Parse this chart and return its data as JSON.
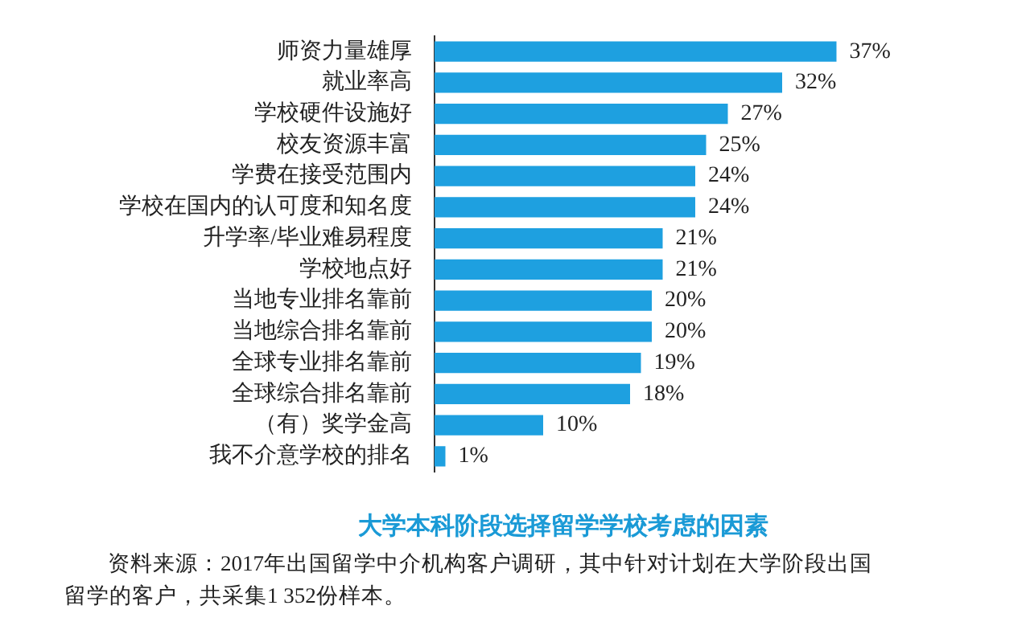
{
  "chart_data": {
    "type": "bar",
    "orientation": "horizontal",
    "title": "大学本科阶段选择留学学校考虑的因素",
    "categories": [
      "师资力量雄厚",
      "就业率高",
      "学校硬件设施好",
      "校友资源丰富",
      "学费在接受范围内",
      "学校在国内的认可度和知名度",
      "升学率/毕业难易程度",
      "学校地点好",
      "当地专业排名靠前",
      "当地综合排名靠前",
      "全球专业排名靠前",
      "全球综合排名靠前",
      "（有）奖学金高",
      "我不介意学校的排名"
    ],
    "values": [
      37,
      32,
      27,
      25,
      24,
      24,
      21,
      21,
      20,
      20,
      19,
      18,
      10,
      1
    ],
    "value_labels": [
      "37%",
      "32%",
      "27%",
      "25%",
      "24%",
      "24%",
      "21%",
      "21%",
      "20%",
      "20%",
      "19%",
      "18%",
      "10%",
      "1%"
    ],
    "color": "#1ea0e0",
    "tick_labels": "y",
    "grid": false,
    "legend": false,
    "annotations": [
      "资料来源：2017年出国留学中介机构客户调研，其中针对计划在大学阶段出国留学的客户，共采集1 352份样本。"
    ]
  }
}
